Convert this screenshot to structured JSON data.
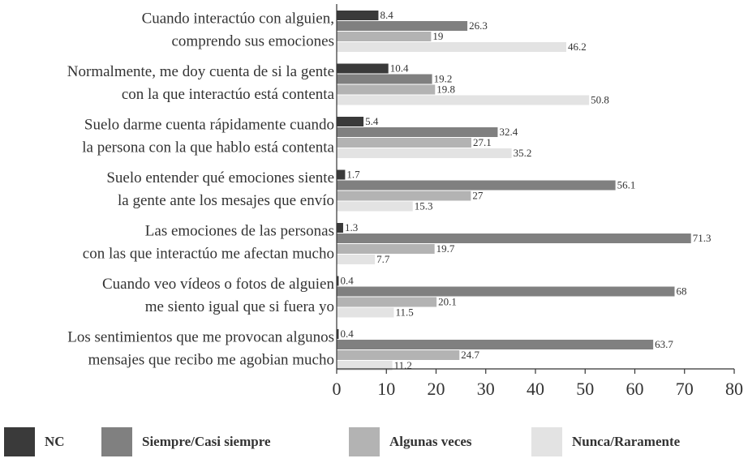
{
  "chart_data": {
    "type": "hbar",
    "categories": [
      [
        "Cuando interactúo con alguien,",
        "comprendo sus emociones"
      ],
      [
        "Normalmente, me doy cuenta de si la gente",
        "con la que interactúo está contenta"
      ],
      [
        "Suelo darme cuenta rápidamente cuando",
        "la persona con la que hablo está contenta"
      ],
      [
        "Suelo entender qué emociones siente",
        "la gente ante los mesajes que envío"
      ],
      [
        "Las emociones de las personas",
        "con las que interactúo me afectan mucho"
      ],
      [
        "Cuando veo vídeos o fotos de alguien",
        "me siento igual que si fuera yo"
      ],
      [
        "Los sentimientos que me provocan algunos",
        "mensajes que recibo me agobian mucho"
      ]
    ],
    "series": [
      {
        "name": "NC",
        "color": "#3a3a3a",
        "values": [
          8.4,
          10.4,
          5.4,
          1.7,
          1.3,
          0.4,
          0.4
        ]
      },
      {
        "name": "Siempre/Casi siempre",
        "color": "#808080",
        "values": [
          26.3,
          19.2,
          32.4,
          56.1,
          71.3,
          68,
          63.7
        ]
      },
      {
        "name": "Algunas veces",
        "color": "#b3b3b3",
        "values": [
          19,
          19.8,
          27.1,
          27,
          19.7,
          20.1,
          24.7
        ]
      },
      {
        "name": "Nunca/Raramente",
        "color": "#e3e3e3",
        "values": [
          46.2,
          50.8,
          35.2,
          15.3,
          7.7,
          11.5,
          11.2
        ]
      }
    ],
    "xlim": [
      0,
      80
    ],
    "xticks": [
      0,
      10,
      20,
      30,
      40,
      50,
      60,
      70,
      80
    ]
  }
}
